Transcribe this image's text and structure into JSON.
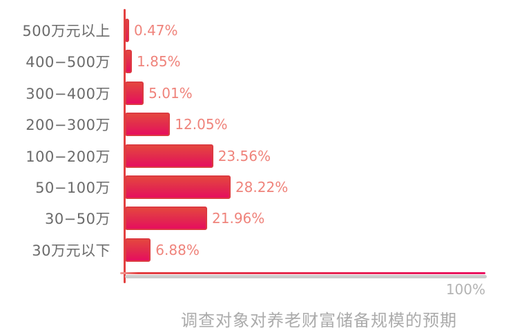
{
  "chart_data": {
    "type": "bar",
    "orientation": "horizontal",
    "title": "调查对象对养老财富储备规模的预期",
    "categories": [
      "500万元以上",
      "400−500万",
      "300−400万",
      "200−300万",
      "100−200万",
      "50−100万",
      "30−50万",
      "30万元以下"
    ],
    "values": [
      0.47,
      1.85,
      5.01,
      12.05,
      23.56,
      28.22,
      21.96,
      6.88
    ],
    "value_labels": [
      "0.47%",
      "1.85%",
      "5.01%",
      "12.05%",
      "23.56%",
      "28.22%",
      "21.96%",
      "6.88%"
    ],
    "axis_max_label": "100%",
    "xlim": [
      0,
      100
    ],
    "grid": false,
    "legend": false,
    "colors": {
      "bar_border": "#dc3a41",
      "bar_gradient_top": "#e5463f",
      "bar_gradient_bottom": "#e60e5e",
      "value_label": "#ef837b",
      "category_label": "#6b6b6b",
      "title": "#ababab",
      "axis_vertical": "#e34140",
      "axis_horizontal_start": "#e23f40",
      "axis_horizontal_end": "#ea1160",
      "axis_shadow": "#cccccc",
      "axis_max_label": "#b3b3b3"
    }
  }
}
